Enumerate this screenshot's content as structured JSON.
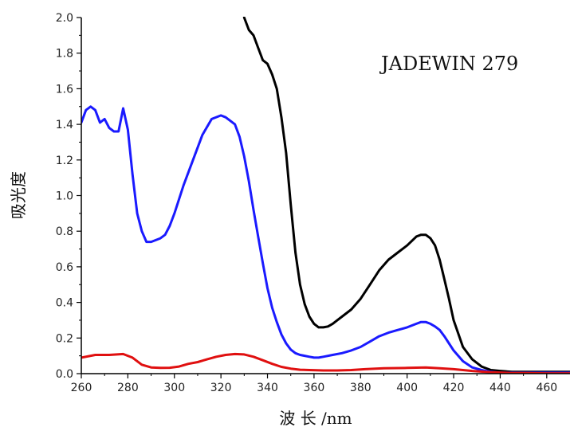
{
  "chart_data": {
    "type": "line",
    "title": "",
    "annotation": "JADEWIN 279",
    "xlabel": "波 长 /nm",
    "ylabel": "吸光度",
    "xlim": [
      260,
      470
    ],
    "ylim": [
      0.0,
      2.0
    ],
    "xticks": [
      "260",
      "280",
      "300",
      "320",
      "340",
      "360",
      "380",
      "400",
      "420",
      "440",
      "460"
    ],
    "yticks": [
      "0.0",
      "0.2",
      "0.4",
      "0.6",
      "0.8",
      "1.0",
      "1.2",
      "1.4",
      "1.6",
      "1.8",
      "2.0"
    ],
    "grid": false,
    "legend": "none",
    "series": [
      {
        "color": "#000000",
        "x": [
          330,
          332,
          334,
          336,
          338,
          340,
          342,
          344,
          346,
          348,
          350,
          352,
          354,
          356,
          358,
          360,
          362,
          364,
          366,
          368,
          370,
          372,
          376,
          380,
          384,
          388,
          392,
          396,
          400,
          404,
          406,
          408,
          410,
          412,
          414,
          416,
          418,
          420,
          424,
          428,
          432,
          436,
          440,
          445,
          450,
          460,
          470
        ],
        "y": [
          2.0,
          1.93,
          1.9,
          1.83,
          1.76,
          1.74,
          1.68,
          1.6,
          1.44,
          1.24,
          0.95,
          0.68,
          0.5,
          0.39,
          0.32,
          0.28,
          0.26,
          0.26,
          0.265,
          0.28,
          0.3,
          0.32,
          0.36,
          0.42,
          0.5,
          0.58,
          0.64,
          0.68,
          0.72,
          0.77,
          0.78,
          0.78,
          0.76,
          0.72,
          0.64,
          0.53,
          0.42,
          0.3,
          0.15,
          0.08,
          0.04,
          0.02,
          0.015,
          0.01,
          0.01,
          0.01,
          0.01
        ]
      },
      {
        "color": "#1a1aff",
        "x": [
          260,
          262,
          264,
          266,
          268,
          270,
          272,
          274,
          276,
          278,
          280,
          282,
          284,
          286,
          288,
          290,
          292,
          294,
          296,
          298,
          300,
          304,
          308,
          312,
          316,
          320,
          322,
          324,
          326,
          328,
          330,
          332,
          334,
          336,
          338,
          340,
          342,
          344,
          346,
          348,
          350,
          352,
          354,
          356,
          358,
          360,
          362,
          364,
          368,
          372,
          376,
          380,
          384,
          388,
          392,
          396,
          400,
          404,
          406,
          408,
          410,
          412,
          414,
          416,
          418,
          420,
          424,
          428,
          432,
          436,
          440,
          445,
          450,
          460,
          470
        ],
        "y": [
          1.41,
          1.48,
          1.5,
          1.48,
          1.41,
          1.43,
          1.38,
          1.36,
          1.36,
          1.49,
          1.37,
          1.12,
          0.9,
          0.8,
          0.74,
          0.74,
          0.75,
          0.76,
          0.78,
          0.83,
          0.9,
          1.06,
          1.2,
          1.34,
          1.43,
          1.45,
          1.44,
          1.42,
          1.4,
          1.33,
          1.22,
          1.08,
          0.92,
          0.77,
          0.62,
          0.48,
          0.37,
          0.29,
          0.22,
          0.17,
          0.135,
          0.115,
          0.105,
          0.1,
          0.095,
          0.09,
          0.09,
          0.095,
          0.105,
          0.115,
          0.13,
          0.15,
          0.18,
          0.21,
          0.23,
          0.245,
          0.26,
          0.28,
          0.29,
          0.29,
          0.28,
          0.265,
          0.245,
          0.21,
          0.17,
          0.13,
          0.07,
          0.035,
          0.02,
          0.01,
          0.005,
          0.005,
          0.005,
          0.005,
          0.005
        ]
      },
      {
        "color": "#e01010",
        "x": [
          260,
          266,
          272,
          278,
          282,
          286,
          290,
          294,
          298,
          302,
          306,
          310,
          314,
          318,
          322,
          326,
          330,
          334,
          338,
          342,
          346,
          350,
          354,
          358,
          364,
          370,
          376,
          382,
          390,
          400,
          408,
          414,
          420,
          428,
          436,
          444,
          450,
          460,
          470
        ],
        "y": [
          0.09,
          0.105,
          0.105,
          0.11,
          0.09,
          0.05,
          0.035,
          0.032,
          0.033,
          0.04,
          0.055,
          0.065,
          0.08,
          0.095,
          0.105,
          0.11,
          0.108,
          0.095,
          0.075,
          0.055,
          0.038,
          0.028,
          0.022,
          0.02,
          0.018,
          0.018,
          0.02,
          0.025,
          0.03,
          0.032,
          0.035,
          0.03,
          0.025,
          0.015,
          0.008,
          0.004,
          0.003,
          0.002,
          0.002
        ]
      }
    ]
  }
}
